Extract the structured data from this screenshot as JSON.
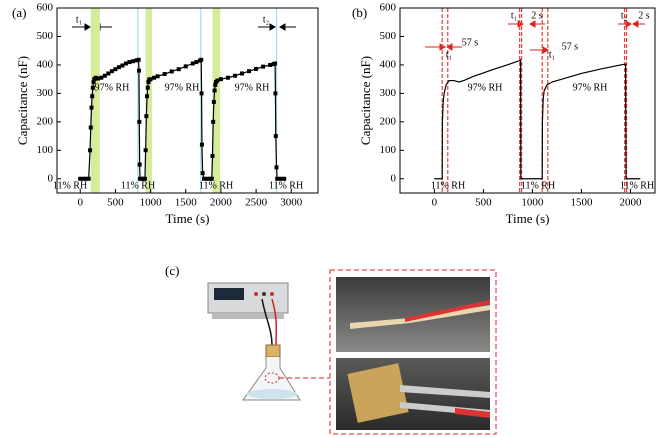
{
  "chart_data": [
    {
      "type": "line",
      "panel_label": "(a)",
      "marker": "square",
      "color": "#000000",
      "x_label": "Time (s)",
      "y_label": "Capacitance (nF)",
      "xlim": [
        -330,
        3380
      ],
      "ylim": [
        -50,
        600
      ],
      "xticks": [
        0,
        500,
        1000,
        1500,
        2000,
        2500,
        3000
      ],
      "yticks": [
        0,
        100,
        200,
        300,
        400,
        500,
        600
      ],
      "bands": [
        {
          "x0": 150,
          "x1": 280,
          "color": "#d6ec9c"
        },
        {
          "x0": 930,
          "x1": 1020,
          "color": "#d6ec9c"
        },
        {
          "x0": 1880,
          "x1": 1990,
          "color": "#d6ec9c"
        }
      ],
      "vlines": {
        "color": "#9edcf0",
        "x": [
          820,
          1715,
          2790
        ]
      },
      "series": [
        {
          "x": [
            0,
            40,
            80,
            120,
            140,
            150,
            160,
            170,
            180,
            190,
            200,
            220,
            250,
            300,
            350,
            400,
            450,
            500,
            550,
            600,
            650,
            700,
            750,
            800,
            830,
            835,
            840,
            845,
            850,
            880,
            900,
            920,
            930,
            940,
            950,
            960,
            970,
            980,
            1000,
            1050,
            1100,
            1200,
            1300,
            1400,
            1500,
            1600,
            1650,
            1700,
            1720,
            1725,
            1730,
            1740,
            1760,
            1800,
            1850,
            1870,
            1880,
            1890,
            1900,
            1910,
            1920,
            1930,
            1950,
            2000,
            2100,
            2200,
            2300,
            2400,
            2500,
            2600,
            2700,
            2750,
            2770,
            2775,
            2780,
            2790,
            2800,
            2850,
            2900
          ],
          "values": [
            0,
            0,
            0,
            0,
            100,
            180,
            250,
            290,
            320,
            340,
            350,
            355,
            352,
            355,
            362,
            370,
            378,
            385,
            392,
            398,
            405,
            410,
            413,
            416,
            418,
            380,
            200,
            50,
            0,
            0,
            0,
            0,
            100,
            220,
            290,
            320,
            340,
            348,
            350,
            355,
            360,
            368,
            377,
            385,
            395,
            405,
            410,
            415,
            418,
            300,
            120,
            20,
            0,
            0,
            0,
            0,
            80,
            200,
            270,
            310,
            330,
            340,
            345,
            350,
            355,
            362,
            370,
            378,
            386,
            394,
            400,
            403,
            405,
            300,
            150,
            40,
            0,
            0,
            0
          ]
        }
      ],
      "annotations": [
        "t₁",
        "t₂",
        "97% RH",
        "97% RH",
        "97% RH",
        "11% RH",
        "11% RH",
        "11% RH",
        "11% RH"
      ]
    },
    {
      "type": "line",
      "panel_label": "(b)",
      "color": "#000000",
      "x_label": "Time (s)",
      "y_label": "Capacitance (nF)",
      "xlim": [
        -350,
        2250
      ],
      "ylim": [
        -50,
        600
      ],
      "xticks": [
        0,
        500,
        1000,
        1500,
        2000
      ],
      "yticks": [
        0,
        100,
        200,
        300,
        400,
        500,
        600
      ],
      "vlines": {
        "color": "#e8413c",
        "x": [
          80,
          137,
          870,
          890,
          1100,
          1157,
          1940,
          1960
        ]
      },
      "series": [
        {
          "x": [
            0,
            80,
            82,
            90,
            100,
            120,
            150,
            200,
            250,
            300,
            400,
            500,
            600,
            700,
            800,
            870,
            880,
            882,
            1100,
            1102,
            1110,
            1120,
            1150,
            1200,
            1300,
            1400,
            1500,
            1600,
            1700,
            1800,
            1900,
            1950,
            1955,
            2100
          ],
          "values": [
            0,
            0,
            200,
            270,
            300,
            330,
            345,
            345,
            340,
            345,
            360,
            372,
            384,
            395,
            407,
            415,
            418,
            0,
            0,
            200,
            280,
            310,
            330,
            340,
            350,
            360,
            370,
            378,
            386,
            393,
            400,
            403,
            0,
            0
          ]
        }
      ],
      "annotations": [
        "57 s",
        "t₁",
        "t₁",
        "2 s",
        "t₁",
        "57 s",
        "t₂",
        "2 s",
        "97% RH",
        "97% RH",
        "11% RH",
        "11% RH",
        "11% RH"
      ]
    }
  ],
  "panel_c": {
    "label": "(c)"
  }
}
